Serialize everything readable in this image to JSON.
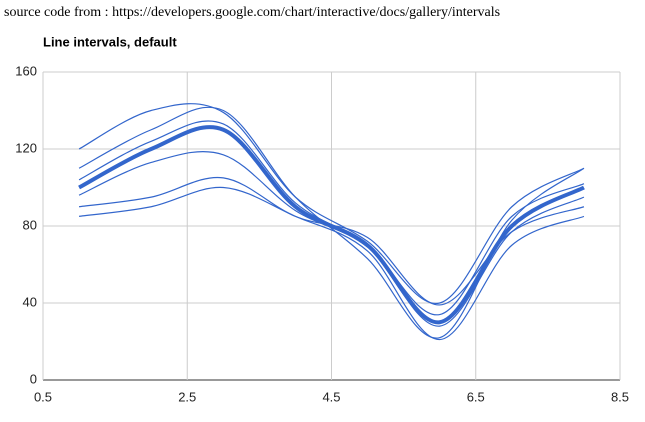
{
  "header": {
    "source": "source code from : https://developers.google.com/chart/interactive/docs/gallery/intervals"
  },
  "chart_data": {
    "type": "line",
    "title": "Line intervals, default",
    "x": [
      1,
      2,
      3,
      4,
      5,
      6,
      7,
      8
    ],
    "series": [
      {
        "color": "#3366cc",
        "values": [
          100,
          120,
          130,
          90,
          70,
          30,
          80,
          100
        ]
      }
    ],
    "intervals": [
      [
        90,
        95,
        105,
        85,
        74,
        39,
        77,
        90
      ],
      [
        110,
        130,
        140,
        95,
        63,
        22,
        83,
        110
      ],
      [
        85,
        90,
        100,
        85,
        67,
        21,
        70,
        85
      ],
      [
        96,
        113,
        117,
        88,
        69,
        28,
        77,
        95
      ],
      [
        104,
        124,
        133,
        92,
        70,
        34,
        85,
        102
      ],
      [
        120,
        140,
        139,
        95,
        72,
        40,
        90,
        110
      ]
    ],
    "interval_color": "#3366cc",
    "xlim": [
      0.5,
      8.5
    ],
    "xticks": [
      0.5,
      2.5,
      4.5,
      6.5,
      8.5
    ],
    "ylim": [
      0,
      160
    ],
    "yticks": [
      0,
      40,
      80,
      120,
      160
    ],
    "grid": true,
    "curve": "smooth"
  }
}
